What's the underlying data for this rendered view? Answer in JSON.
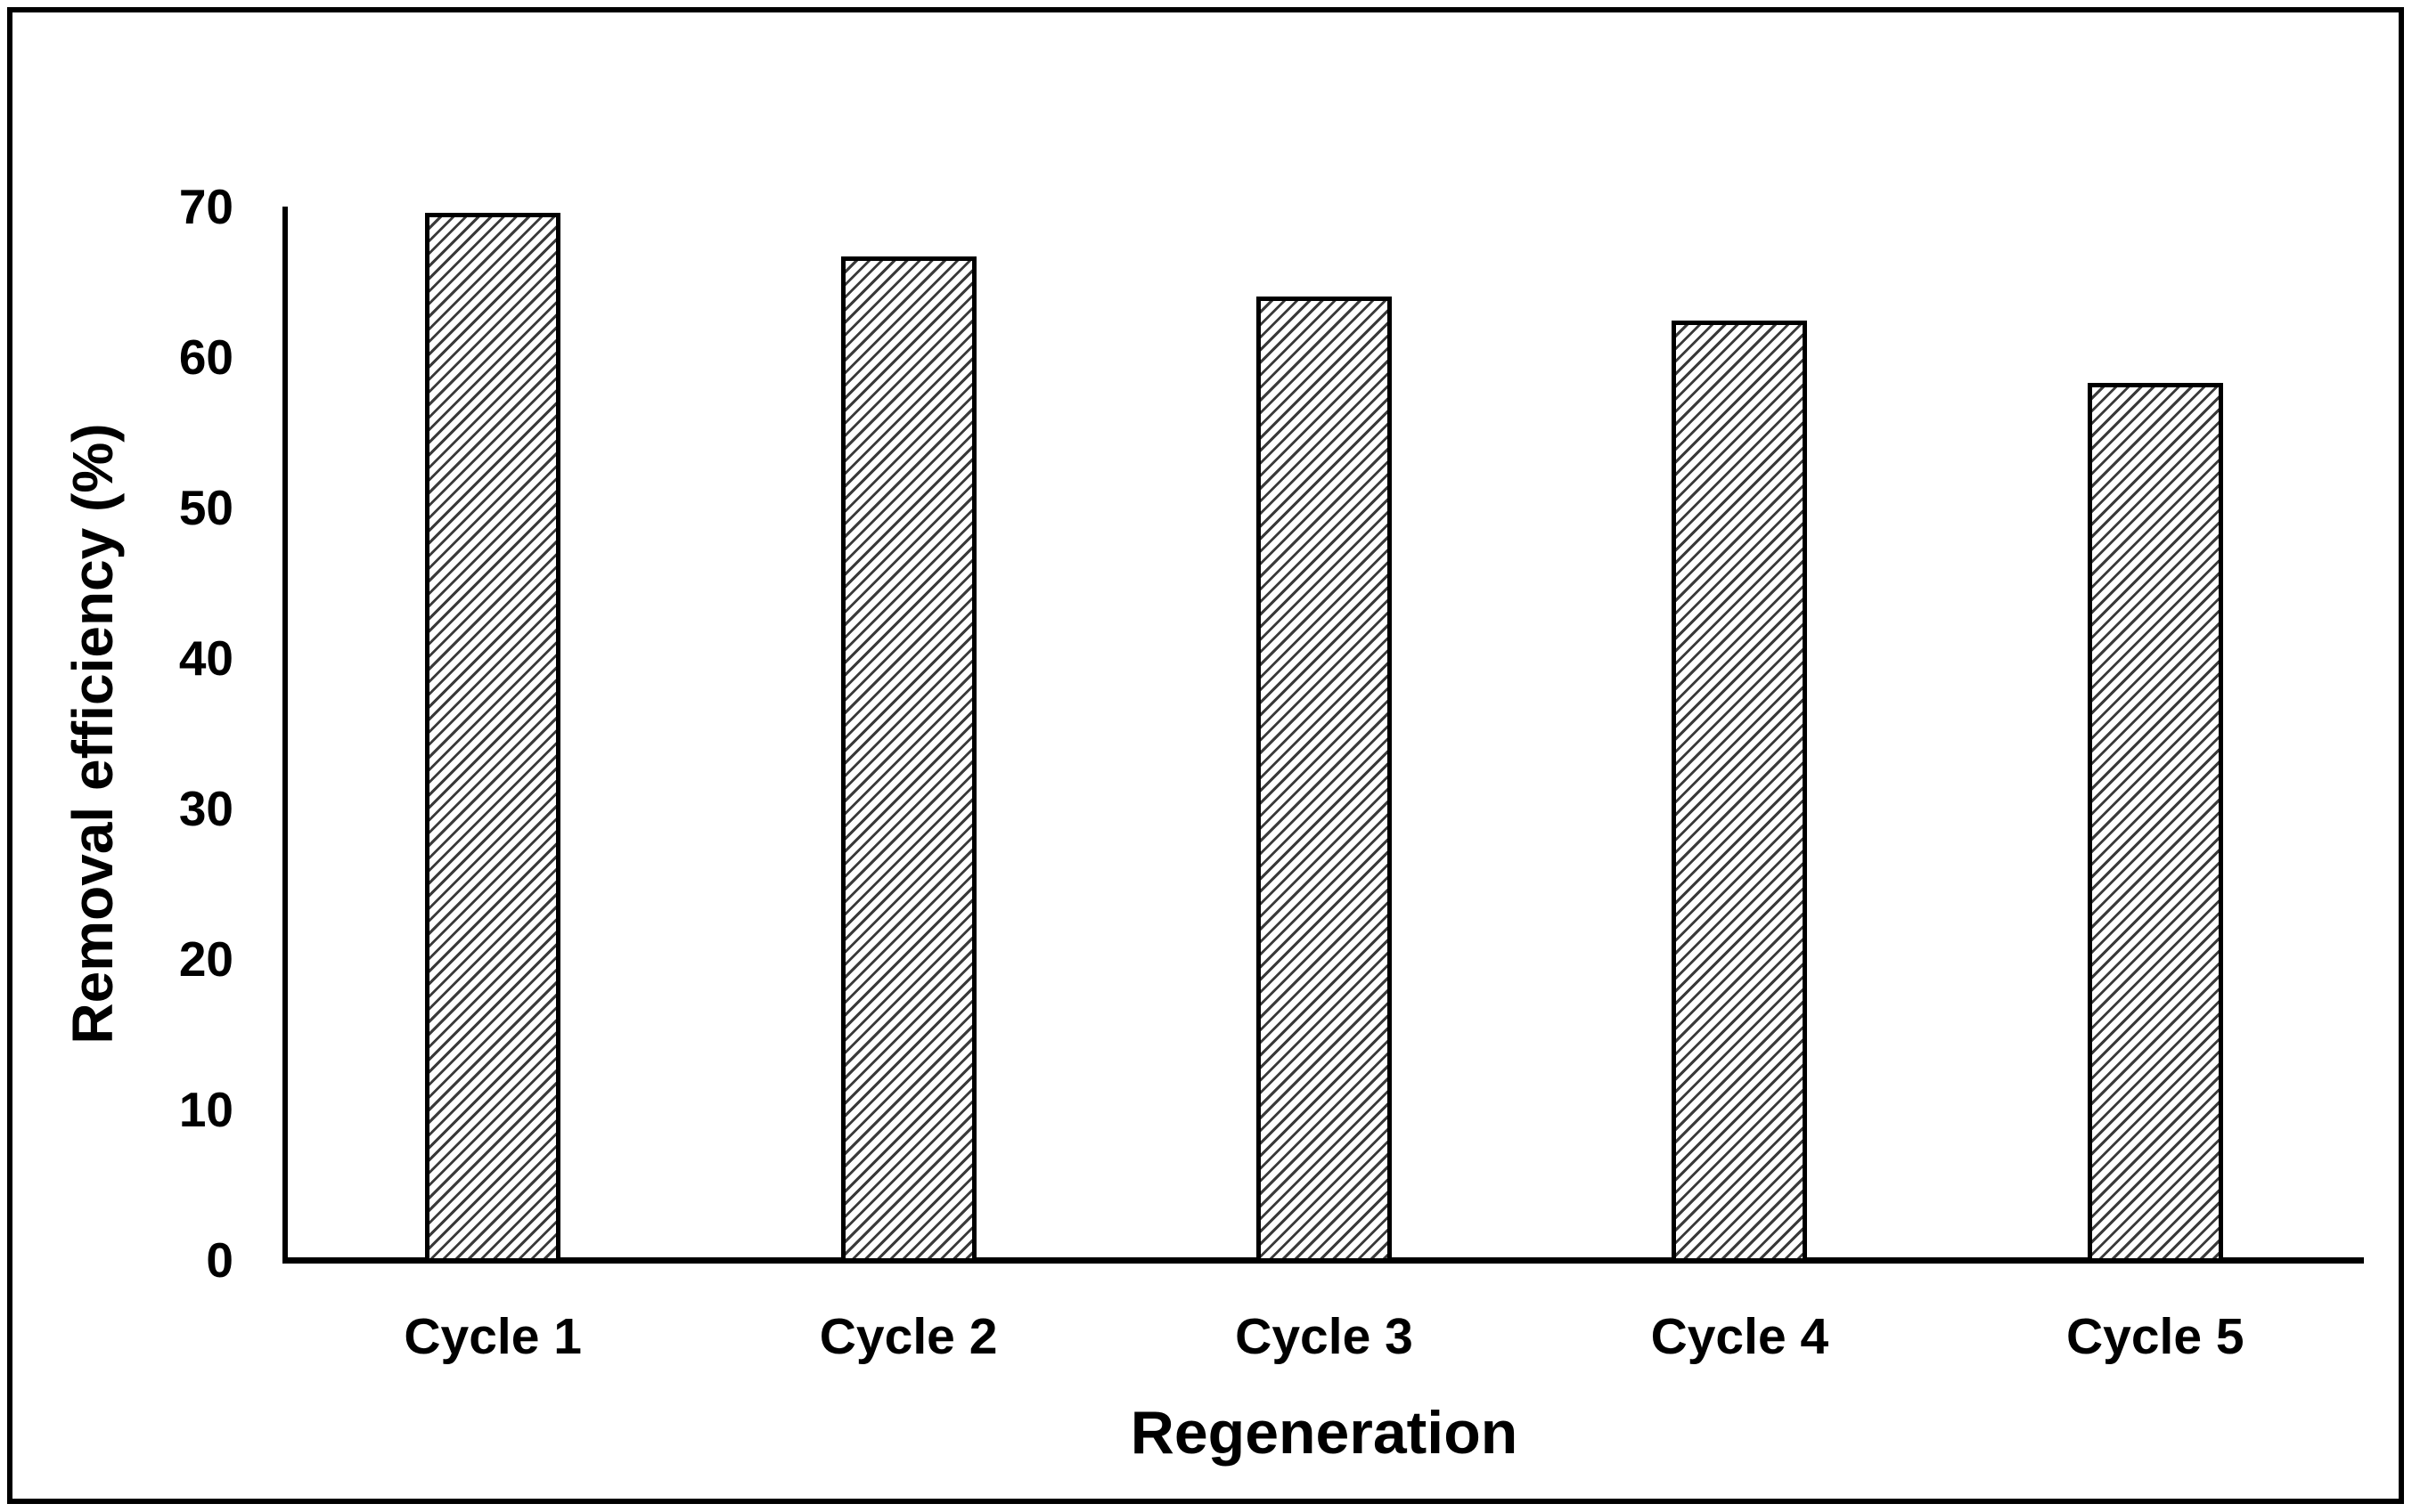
{
  "chart_data": {
    "type": "bar",
    "categories": [
      "Cycle 1",
      "Cycle 2",
      "Cycle 3",
      "Cycle 4",
      "Cycle 5"
    ],
    "values": [
      69.6,
      66.7,
      64.0,
      62.4,
      58.3
    ],
    "title": "",
    "xlabel": "Regeneration",
    "ylabel": "Removal efficiency (%)",
    "ylim": [
      0,
      70
    ],
    "yticks": [
      0,
      10,
      20,
      30,
      40,
      50,
      60,
      70
    ],
    "grid": false,
    "legend": false,
    "bar_style": {
      "fill": "#ffffff",
      "hatch": "diagonal-forward",
      "hatch_color": "#3a3a3a",
      "border_color": "#000000"
    },
    "figure": {
      "border_color": "#000000",
      "background": "#ffffff",
      "text_color": "#000000"
    }
  }
}
